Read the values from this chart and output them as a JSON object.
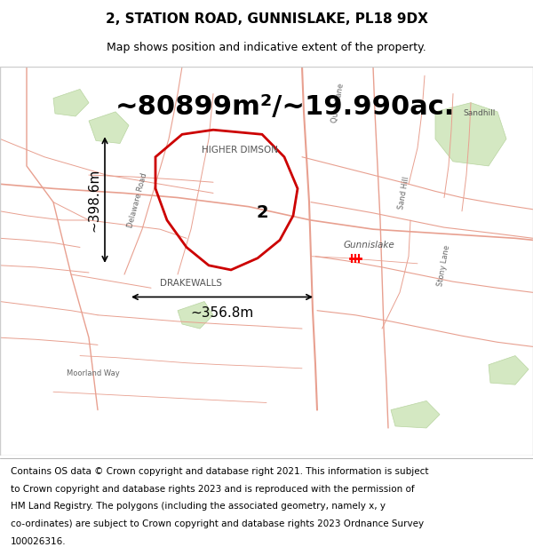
{
  "title": "2, STATION ROAD, GUNNISLAKE, PL18 9DX",
  "subtitle": "Map shows position and indicative extent of the property.",
  "area_text": "~80899m²/~19.990ac.",
  "dim_horizontal": "~356.8m",
  "dim_vertical": "~398.6m",
  "label_number": "2",
  "label_place": "HIGHER DIMSON",
  "label_drakewalls": "DRAKEWALLS",
  "label_gunnislake": "Gunnislake",
  "footer_lines": [
    "Contains OS data © Crown copyright and database right 2021. This information is subject",
    "to Crown copyright and database rights 2023 and is reproduced with the permission of",
    "HM Land Registry. The polygons (including the associated geometry, namely x, y",
    "co-ordinates) are subject to Crown copyright and database rights 2023 Ordnance Survey",
    "100026316."
  ],
  "bg_color": "#ffffff",
  "map_bg": "#f2ebe6",
  "road_color": "#e8a090",
  "polygon_color": "#cc0000",
  "title_fontsize": 11,
  "subtitle_fontsize": 9,
  "area_fontsize": 22,
  "dim_fontsize": 11,
  "footer_fontsize": 7.5
}
